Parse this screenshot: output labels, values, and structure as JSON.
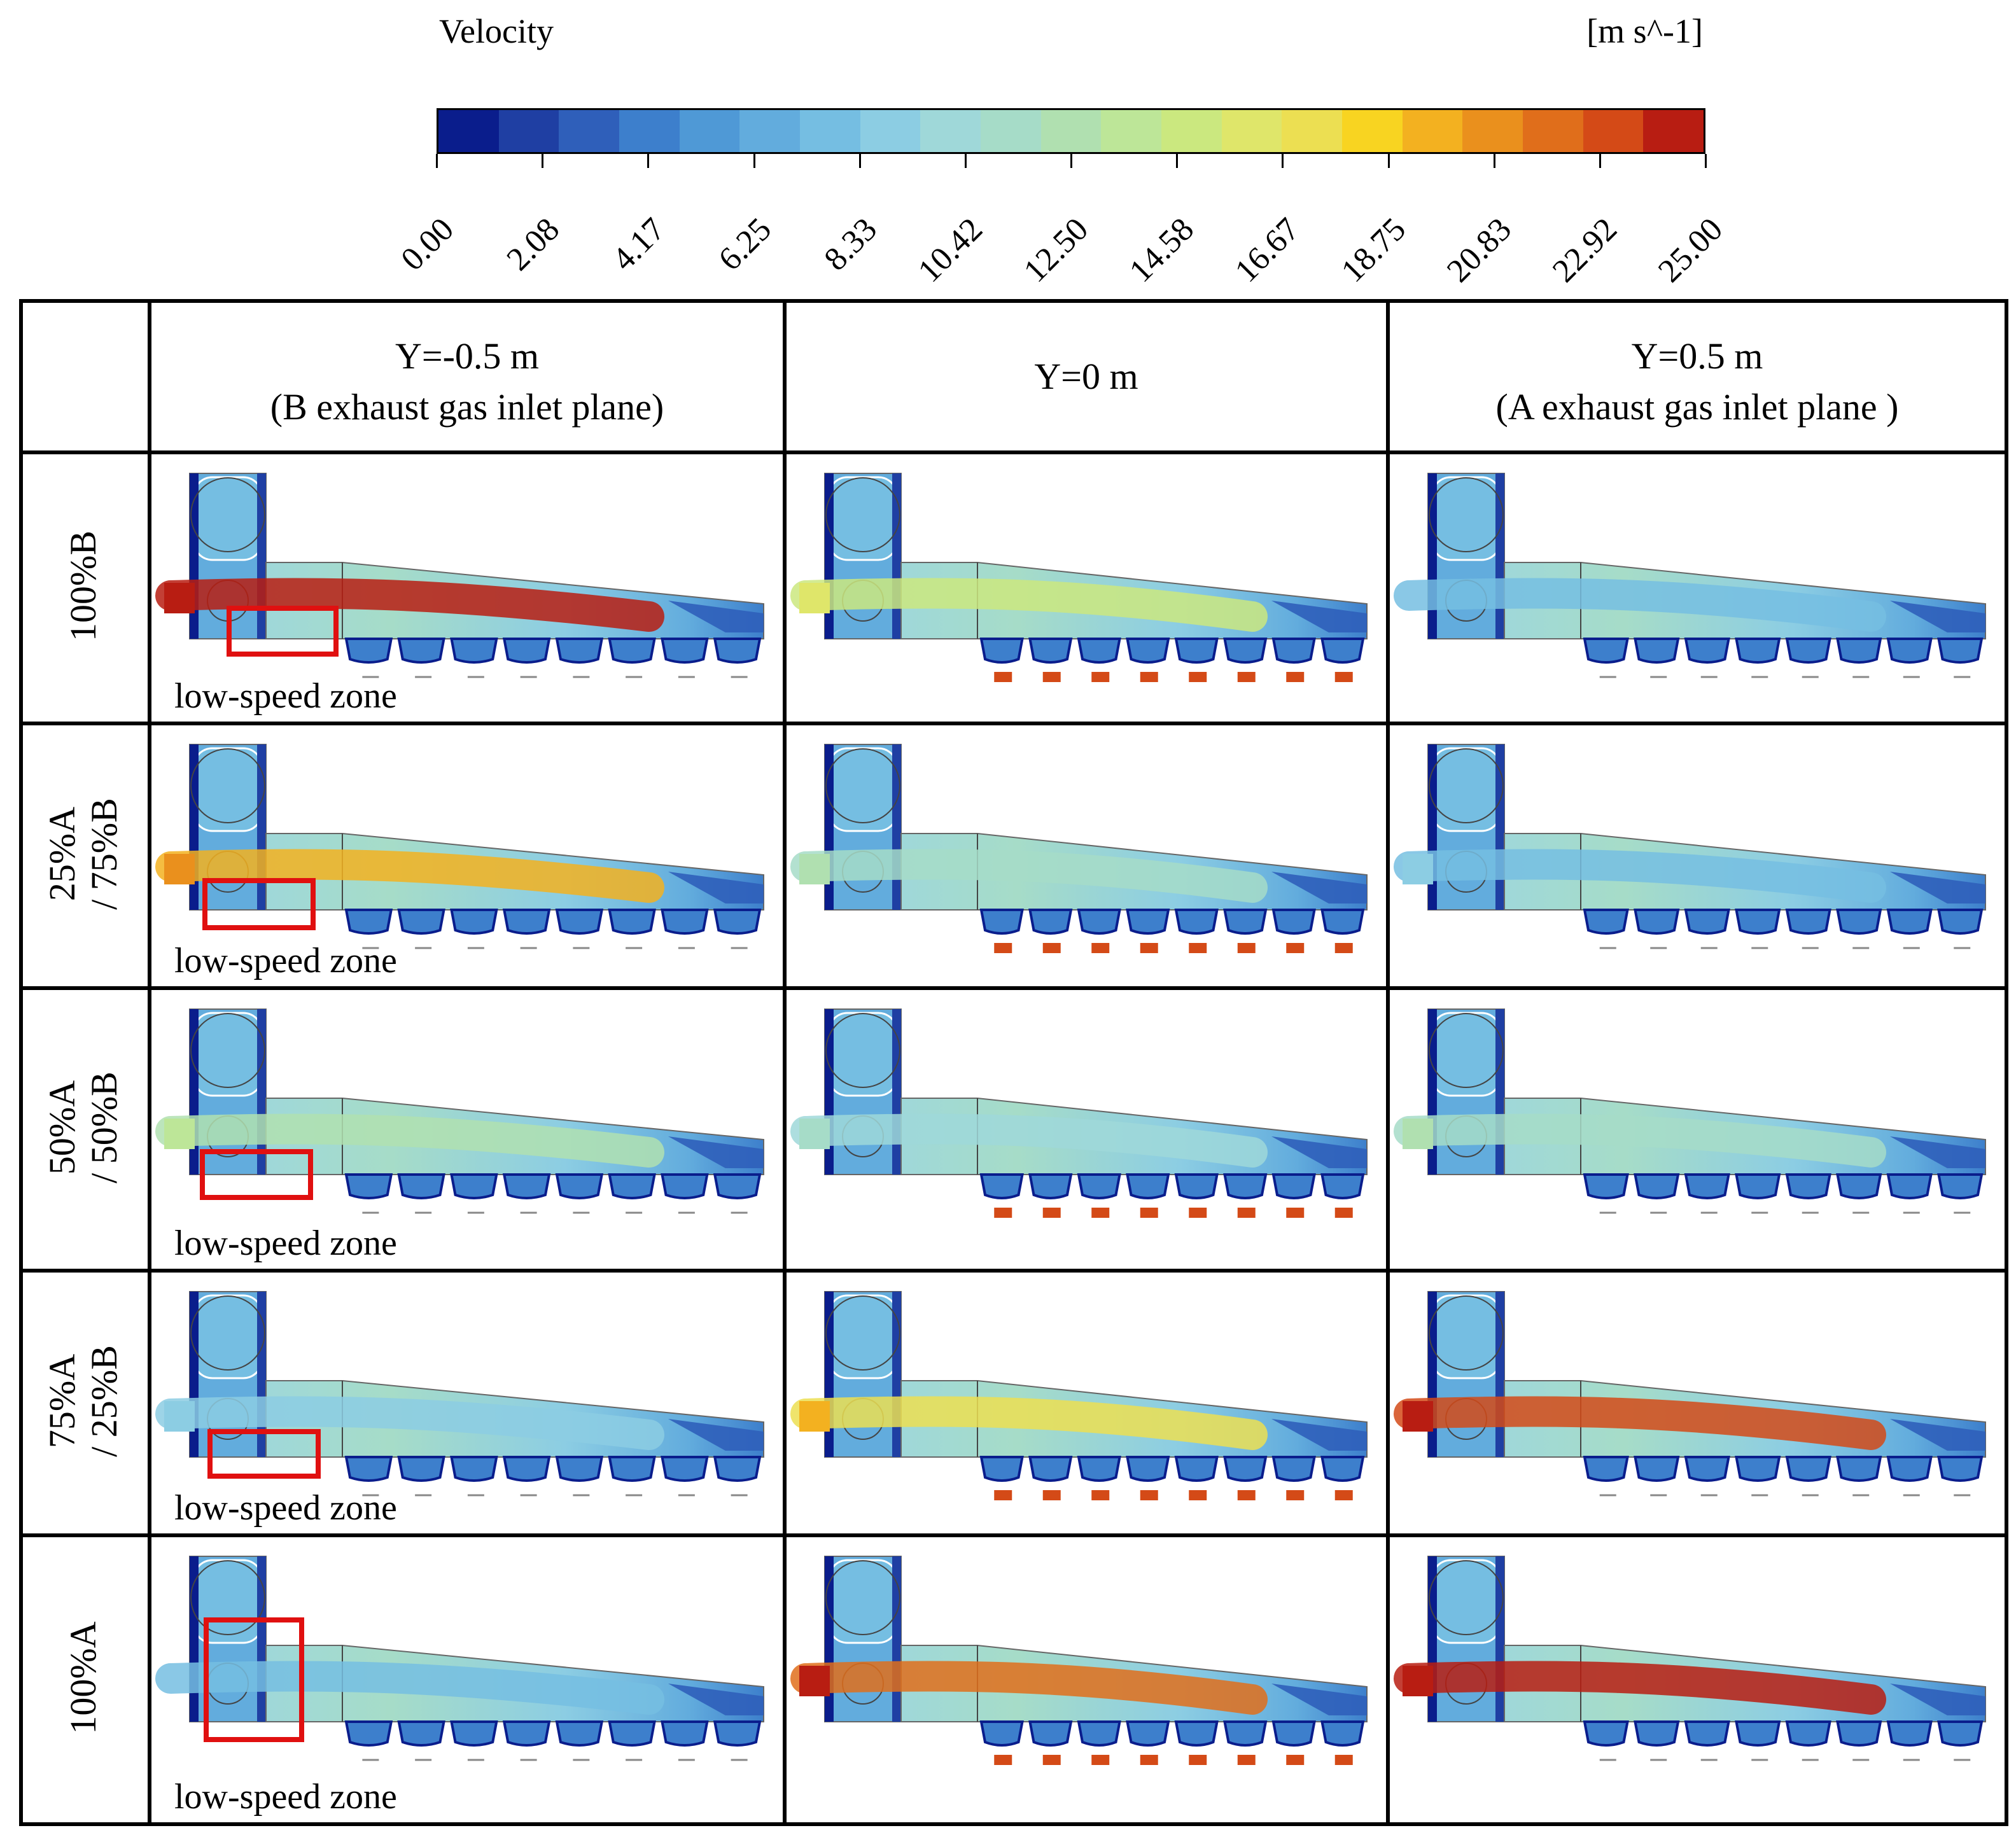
{
  "legend": {
    "title": "Velocity",
    "unit": "[m s^-1]",
    "ticks": [
      "0.00",
      "2.08",
      "4.17",
      "6.25",
      "8.33",
      "10.42",
      "12.50",
      "14.58",
      "16.67",
      "18.75",
      "20.83",
      "22.92",
      "25.00"
    ],
    "colors": [
      "#0a1d8c",
      "#1f3fa3",
      "#2f5fba",
      "#3d7fcc",
      "#4f99d6",
      "#62acdd",
      "#75bee2",
      "#8ccde3",
      "#9fd8d9",
      "#a6dcc8",
      "#b0e0b0",
      "#bde698",
      "#cbe87f",
      "#dfe66a",
      "#ecdf52",
      "#f8d421",
      "#f3b120",
      "#ea901d",
      "#e06e1b",
      "#d44a17",
      "#b81d12"
    ]
  },
  "columns": [
    {
      "line1": "Y=-0.5 m",
      "line2": "(B exhaust gas inlet plane)"
    },
    {
      "line1": "Y=0 m",
      "line2": ""
    },
    {
      "line1": "Y=0.5 m",
      "line2": "(A exhaust gas inlet plane )"
    }
  ],
  "rows": [
    {
      "line1": "100%B",
      "line2": ""
    },
    {
      "line1": "25%A",
      "line2": "/ 75%B"
    },
    {
      "line1": "50%A",
      "line2": "/ 50%B"
    },
    {
      "line1": "75%A",
      "line2": "/ 25%B"
    },
    {
      "line1": "100%A",
      "line2": ""
    }
  ],
  "annotation": {
    "low_speed": "low-speed zone"
  }
}
